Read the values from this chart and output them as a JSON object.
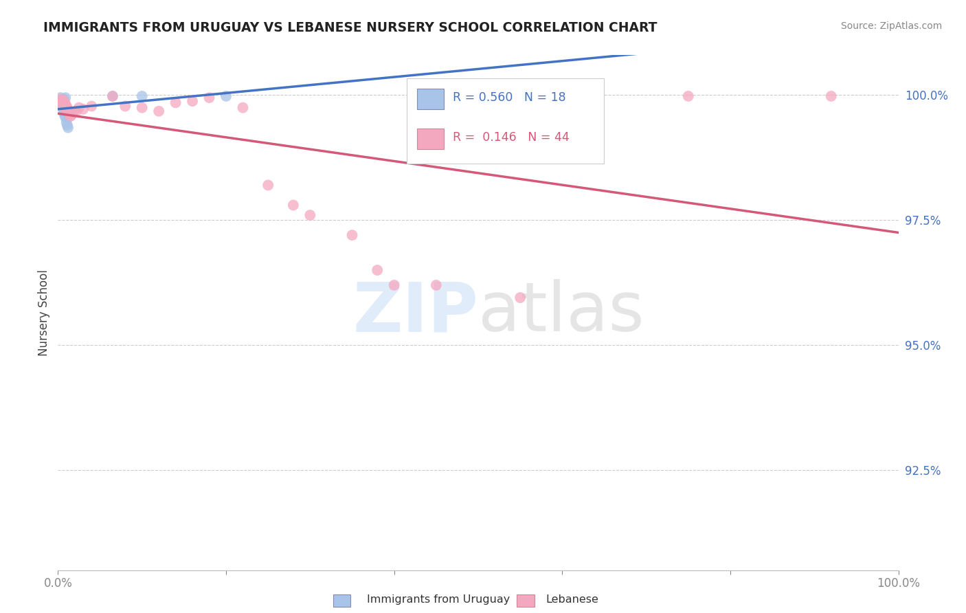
{
  "title": "IMMIGRANTS FROM URUGUAY VS LEBANESE NURSERY SCHOOL CORRELATION CHART",
  "source_text": "Source: ZipAtlas.com",
  "ylabel": "Nursery School",
  "R1": 0.56,
  "N1": 18,
  "R2": 0.146,
  "N2": 44,
  "legend_label1": "Immigrants from Uruguay",
  "legend_label2": "Lebanese",
  "color_blue": "#a8c4e8",
  "color_pink": "#f4a8c0",
  "line_blue": "#4472c4",
  "line_pink": "#d45878",
  "xmin": 0.0,
  "xmax": 1.0,
  "ymin": 0.905,
  "ymax": 1.008,
  "yticks": [
    0.925,
    0.95,
    0.975,
    1.0
  ],
  "ytick_labels": [
    "92.5%",
    "95.0%",
    "97.5%",
    "100.0%"
  ],
  "blue_points_x": [
    0.003,
    0.004,
    0.005,
    0.005,
    0.006,
    0.006,
    0.007,
    0.007,
    0.007,
    0.008,
    0.009,
    0.009,
    0.01,
    0.011,
    0.012,
    0.065,
    0.1,
    0.2
  ],
  "blue_points_y": [
    0.9995,
    0.999,
    0.9985,
    0.9975,
    0.9988,
    0.9978,
    0.9992,
    0.9982,
    0.9965,
    0.996,
    0.9995,
    0.9955,
    0.9945,
    0.994,
    0.9935,
    0.9998,
    0.9998,
    0.9998
  ],
  "pink_points_x": [
    0.003,
    0.004,
    0.005,
    0.006,
    0.006,
    0.007,
    0.007,
    0.008,
    0.008,
    0.009,
    0.009,
    0.01,
    0.01,
    0.011,
    0.011,
    0.012,
    0.013,
    0.014,
    0.015,
    0.016,
    0.018,
    0.022,
    0.025,
    0.03,
    0.04,
    0.065,
    0.08,
    0.1,
    0.12,
    0.14,
    0.16,
    0.18,
    0.22,
    0.25,
    0.28,
    0.3,
    0.35,
    0.38,
    0.4,
    0.45,
    0.55,
    0.62,
    0.75,
    0.92
  ],
  "pink_points_y": [
    0.9992,
    0.9988,
    0.9985,
    0.999,
    0.9982,
    0.9988,
    0.9978,
    0.9985,
    0.9975,
    0.9982,
    0.9975,
    0.9978,
    0.997,
    0.9975,
    0.9968,
    0.997,
    0.9965,
    0.9962,
    0.9958,
    0.996,
    0.9965,
    0.9968,
    0.9975,
    0.9972,
    0.9978,
    0.9998,
    0.9978,
    0.9975,
    0.9968,
    0.9985,
    0.9988,
    0.9995,
    0.9975,
    0.982,
    0.978,
    0.976,
    0.972,
    0.965,
    0.962,
    0.962,
    0.9595,
    0.9998,
    0.9998,
    0.9998
  ]
}
